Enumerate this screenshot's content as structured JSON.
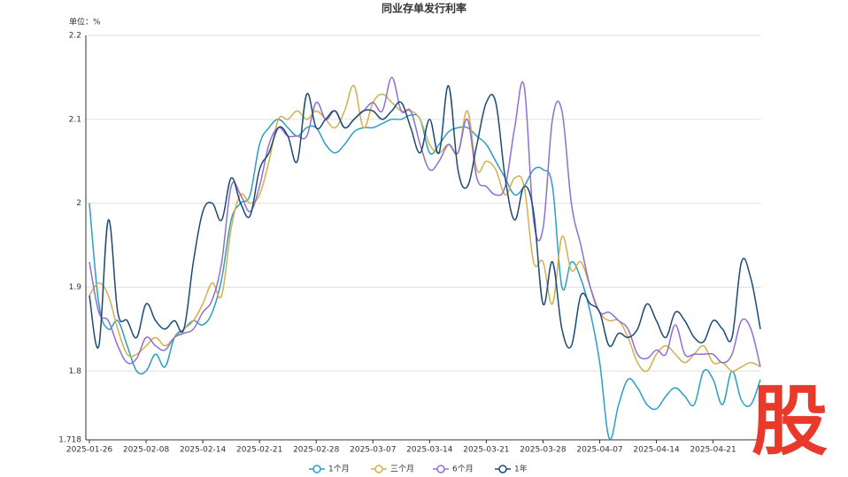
{
  "chart_data": {
    "type": "line",
    "title": "同业存单发行利率",
    "y_axis_label": "单位：%",
    "watermark": "股",
    "categories": [
      "2025-01-26",
      null,
      null,
      null,
      null,
      null,
      "2025-02-08",
      null,
      null,
      null,
      null,
      null,
      "2025-02-14",
      null,
      null,
      null,
      null,
      null,
      "2025-02-21",
      null,
      null,
      null,
      null,
      null,
      "2025-02-28",
      null,
      null,
      null,
      null,
      null,
      "2025-03-07",
      null,
      null,
      null,
      null,
      null,
      "2025-03-14",
      null,
      null,
      null,
      null,
      null,
      "2025-03-21",
      null,
      null,
      null,
      null,
      null,
      "2025-03-28",
      null,
      null,
      null,
      null,
      null,
      "2025-04-07",
      null,
      null,
      null,
      null,
      null,
      "2025-04-14",
      null,
      null,
      null,
      null,
      null,
      "2025-04-21",
      null,
      null,
      null,
      null,
      null
    ],
    "series": [
      {
        "name": "1个月",
        "color": "#2a9fc4",
        "values": [
          2.0,
          1.88,
          1.85,
          1.86,
          1.83,
          1.8,
          1.8,
          1.82,
          1.805,
          1.84,
          1.85,
          1.86,
          1.855,
          1.87,
          1.91,
          1.98,
          2.0,
          2.01,
          2.07,
          2.09,
          2.1,
          2.09,
          2.08,
          2.09,
          2.09,
          2.07,
          2.06,
          2.07,
          2.085,
          2.09,
          2.09,
          2.095,
          2.1,
          2.1,
          2.105,
          2.1,
          2.06,
          2.07,
          2.085,
          2.09,
          2.09,
          2.08,
          2.07,
          2.05,
          2.03,
          2.01,
          2.02,
          2.04,
          2.04,
          2.02,
          1.9,
          1.93,
          1.91,
          1.87,
          1.81,
          1.72,
          1.76,
          1.79,
          1.78,
          1.76,
          1.755,
          1.77,
          1.78,
          1.77,
          1.76,
          1.8,
          1.79,
          1.76,
          1.8,
          1.765,
          1.76,
          1.79
        ]
      },
      {
        "name": "三个月",
        "color": "#d4b04c",
        "values": [
          1.89,
          1.905,
          1.89,
          1.85,
          1.82,
          1.82,
          1.83,
          1.84,
          1.83,
          1.84,
          1.85,
          1.86,
          1.88,
          1.905,
          1.89,
          1.97,
          2.01,
          2.0,
          2.01,
          2.05,
          2.1,
          2.1,
          2.11,
          2.1,
          2.11,
          2.1,
          2.09,
          2.11,
          2.14,
          2.09,
          2.12,
          2.13,
          2.12,
          2.11,
          2.11,
          2.1,
          2.07,
          2.06,
          2.07,
          2.06,
          2.11,
          2.04,
          2.05,
          2.04,
          2.01,
          2.03,
          2.02,
          1.93,
          1.93,
          1.88,
          1.96,
          1.92,
          1.93,
          1.9,
          1.87,
          1.86,
          1.86,
          1.84,
          1.81,
          1.8,
          1.82,
          1.83,
          1.82,
          1.81,
          1.82,
          1.83,
          1.81,
          1.81,
          1.8,
          1.805,
          1.81,
          1.805
        ]
      },
      {
        "name": "6个月",
        "color": "#8f6fd4",
        "values": [
          1.93,
          1.87,
          1.86,
          1.83,
          1.81,
          1.815,
          1.84,
          1.83,
          1.825,
          1.84,
          1.845,
          1.85,
          1.87,
          1.885,
          1.93,
          2.02,
          2.01,
          1.99,
          2.02,
          2.07,
          2.09,
          2.08,
          2.08,
          2.08,
          2.12,
          2.1,
          2.11,
          2.09,
          2.1,
          2.11,
          2.12,
          2.11,
          2.15,
          2.11,
          2.11,
          2.07,
          2.04,
          2.05,
          2.07,
          2.06,
          2.1,
          2.03,
          2.02,
          2.01,
          2.02,
          2.09,
          2.14,
          1.98,
          1.97,
          2.1,
          2.11,
          2.0,
          1.95,
          1.9,
          1.87,
          1.87,
          1.86,
          1.85,
          1.82,
          1.815,
          1.825,
          1.82,
          1.855,
          1.82,
          1.82,
          1.82,
          1.82,
          1.81,
          1.82,
          1.86,
          1.85,
          1.805
        ]
      },
      {
        "name": "1年",
        "color": "#1c4a74",
        "values": [
          1.89,
          1.83,
          1.98,
          1.87,
          1.86,
          1.84,
          1.88,
          1.86,
          1.85,
          1.86,
          1.85,
          1.93,
          1.99,
          2.0,
          1.98,
          2.03,
          2.0,
          1.985,
          2.04,
          2.06,
          2.09,
          2.08,
          2.05,
          2.13,
          2.09,
          2.1,
          2.11,
          2.09,
          2.1,
          2.11,
          2.11,
          2.1,
          2.11,
          2.12,
          2.09,
          2.06,
          2.1,
          2.06,
          2.14,
          2.04,
          2.02,
          2.07,
          2.12,
          2.12,
          2.03,
          1.98,
          2.02,
          1.99,
          1.88,
          1.93,
          1.85,
          1.83,
          1.89,
          1.88,
          1.87,
          1.83,
          1.845,
          1.84,
          1.85,
          1.88,
          1.86,
          1.84,
          1.87,
          1.86,
          1.84,
          1.835,
          1.86,
          1.85,
          1.84,
          1.93,
          1.91,
          1.85
        ]
      }
    ],
    "ylim": [
      1.718,
      2.2
    ],
    "yticks": [
      1.718,
      1.8,
      1.9,
      2,
      2.1,
      2.2
    ],
    "grid": true,
    "legend": "bottom"
  }
}
